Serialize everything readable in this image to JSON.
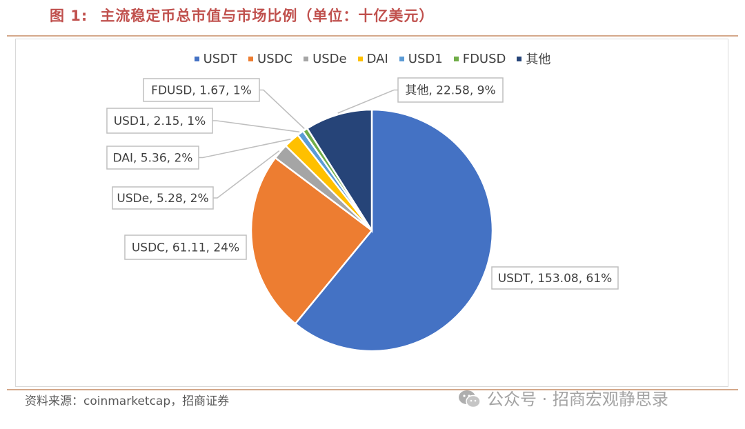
{
  "figure": {
    "label": "图 1:",
    "title": "主流稳定币总市值与市场比例（单位：十亿美元）",
    "source": "资料来源：coinmarketcap，招商证券",
    "watermark": "公众号 · 招商宏观静思录",
    "watermark_icon": "wechat-icon"
  },
  "chart_data": {
    "type": "pie",
    "title": "",
    "legend_position": "top",
    "categories": [
      "USDT",
      "USDC",
      "USDe",
      "DAI",
      "USD1",
      "FDUSD",
      "其他"
    ],
    "values": [
      153.08,
      61.11,
      5.28,
      5.36,
      2.15,
      1.67,
      22.58
    ],
    "percent_labels": [
      "61%",
      "24%",
      "2%",
      "2%",
      "1%",
      "1%",
      "9%"
    ],
    "data_labels": [
      "USDT, 153.08, 61%",
      "USDC, 61.11, 24%",
      "USDe, 5.28, 2%",
      "DAI, 5.36, 2%",
      "USD1, 2.15, 1%",
      "FDUSD, 1.67, 1%",
      "其他, 22.58, 9%"
    ],
    "colors": [
      "#4472c4",
      "#ed7d31",
      "#a5a5a5",
      "#ffc000",
      "#5b9bd5",
      "#70ad47",
      "#264478"
    ]
  }
}
